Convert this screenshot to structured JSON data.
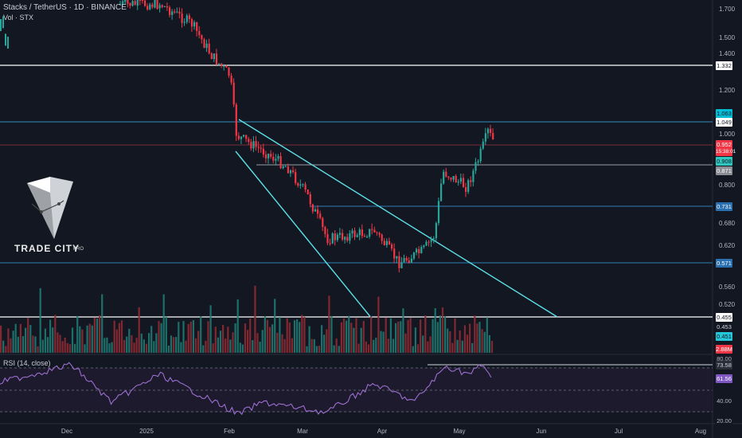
{
  "header": {
    "symbol_line": "Stacks / TetherUS · 1D · BINANCE",
    "volume_line": "Vol · STX"
  },
  "rsi": {
    "title": "RSI (14, close)",
    "value": "61.56",
    "levels": [
      "80.00",
      "73.58",
      "40.00",
      "20.00"
    ]
  },
  "logo": {
    "name": "TRADE CITY",
    "suffix": "PRO"
  },
  "price_axis": [
    "1.700",
    "1.500",
    "1.400",
    "1.200",
    "1.000",
    "0.800",
    "0.680",
    "0.620",
    "0.560",
    "0.520",
    "0.480"
  ],
  "price_badges": [
    {
      "text": "1.332",
      "bg": "#ffffff",
      "fg": "#131722"
    },
    {
      "text": "1.063",
      "bg": "#00bcd4",
      "fg": "#131722"
    },
    {
      "text": "1.049",
      "bg": "#ffffff",
      "fg": "#131722"
    },
    {
      "text": "0.952",
      "bg": "#f23645",
      "fg": "#ffffff"
    },
    {
      "text": "15:38:01",
      "bg": "#f23645",
      "fg": "#ffffff"
    },
    {
      "text": "0.908",
      "bg": "#2ec8c0",
      "fg": "#131722"
    },
    {
      "text": "0.871",
      "bg": "#8a8d94",
      "fg": "#ffffff"
    },
    {
      "text": "0.731",
      "bg": "#2a6fb0",
      "fg": "#ffffff"
    },
    {
      "text": "0.571",
      "bg": "#2a6fb0",
      "fg": "#ffffff"
    },
    {
      "text": "0.455",
      "bg": "#ffffff",
      "fg": "#131722"
    },
    {
      "text": "0.453",
      "bg": "#131722",
      "fg": "#d1d4dc"
    },
    {
      "text": "0.451",
      "bg": "#26c6da",
      "fg": "#131722"
    },
    {
      "text": "2.88M",
      "bg": "#f23645",
      "fg": "#ffffff"
    }
  ],
  "time_axis": [
    "Dec",
    "2025",
    "Feb",
    "Mar",
    "Apr",
    "May",
    "Jun",
    "Jul",
    "Aug"
  ],
  "colors": {
    "up": "#26a69a",
    "down": "#f23645",
    "bg": "#131722",
    "rsi": "#9c6fcf",
    "trend": "#5ce1e6"
  }
}
